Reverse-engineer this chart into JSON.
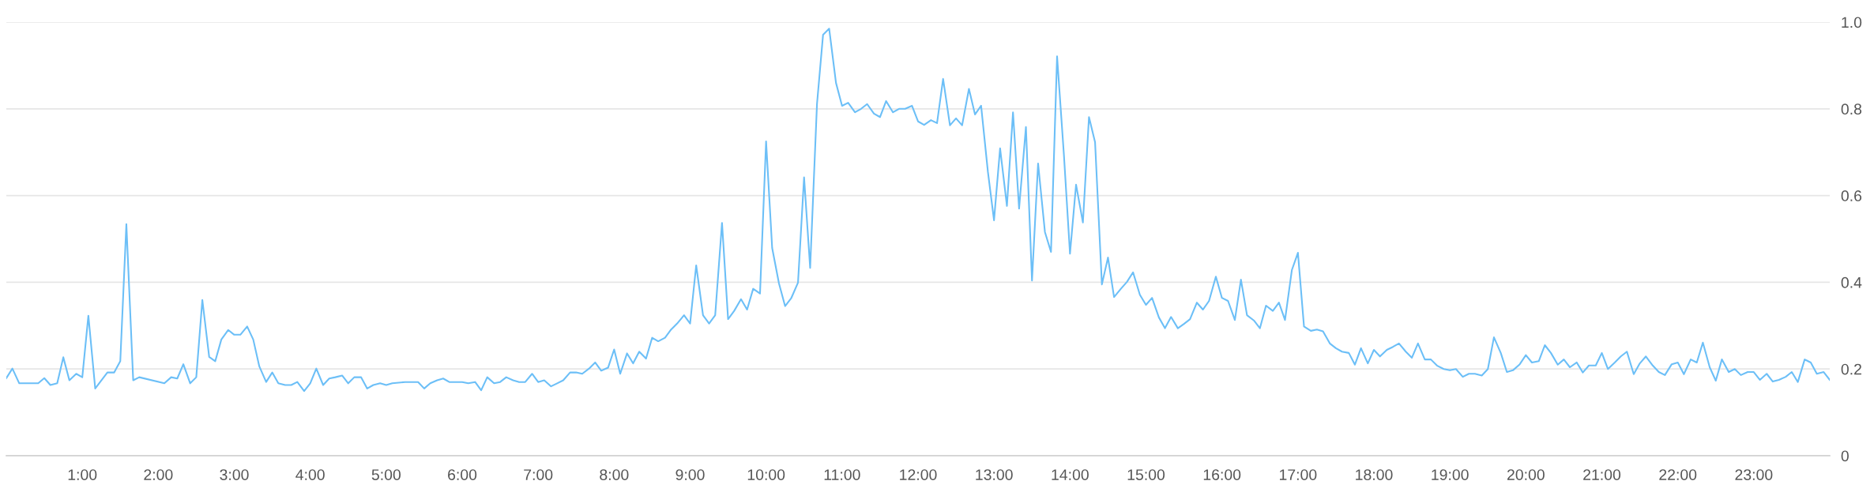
{
  "chart_data": {
    "type": "line",
    "x": [
      0,
      0.08,
      0.17,
      0.42,
      0.5,
      0.58,
      0.67,
      0.75,
      0.83,
      0.92,
      1,
      1.08,
      1.17,
      1.33,
      1.42,
      1.5,
      1.58,
      1.67,
      1.75,
      2.08,
      2.17,
      2.25,
      2.33,
      2.42,
      2.5,
      2.58,
      2.67,
      2.75,
      2.83,
      2.92,
      3,
      3.08,
      3.17,
      3.25,
      3.33,
      3.42,
      3.5,
      3.58,
      3.67,
      3.75,
      3.83,
      3.92,
      4,
      4.08,
      4.17,
      4.25,
      4.33,
      4.42,
      4.5,
      4.58,
      4.67,
      4.75,
      4.83,
      4.92,
      5,
      5.08,
      5.25,
      5.42,
      5.5,
      5.58,
      5.67,
      5.75,
      5.83,
      6,
      6.08,
      6.17,
      6.25,
      6.33,
      6.42,
      6.5,
      6.58,
      6.67,
      6.75,
      6.83,
      6.92,
      7,
      7.08,
      7.17,
      7.25,
      7.33,
      7.42,
      7.5,
      7.58,
      7.67,
      7.75,
      7.83,
      7.92,
      8,
      8.08,
      8.17,
      8.25,
      8.33,
      8.42,
      8.5,
      8.58,
      8.67,
      8.75,
      8.83,
      8.92,
      9,
      9.08,
      9.17,
      9.25,
      9.33,
      9.42,
      9.5,
      9.58,
      9.67,
      9.75,
      9.83,
      9.92,
      10,
      10.08,
      10.17,
      10.25,
      10.33,
      10.42,
      10.5,
      10.58,
      10.67,
      10.75,
      10.83,
      10.92,
      11,
      11.08,
      11.17,
      11.25,
      11.33,
      11.42,
      11.5,
      11.58,
      11.67,
      11.75,
      11.83,
      11.92,
      12,
      12.08,
      12.17,
      12.25,
      12.33,
      12.42,
      12.5,
      12.58,
      12.67,
      12.75,
      12.83,
      12.92,
      13,
      13.08,
      13.17,
      13.25,
      13.33,
      13.42,
      13.5,
      13.58,
      13.67,
      13.75,
      13.83,
      13.92,
      14,
      14.08,
      14.17,
      14.25,
      14.33,
      14.42,
      14.5,
      14.58,
      14.67,
      14.75,
      14.83,
      14.92,
      15,
      15.08,
      15.17,
      15.25,
      15.33,
      15.42,
      15.5,
      15.58,
      15.67,
      15.75,
      15.83,
      15.92,
      16,
      16.08,
      16.17,
      16.25,
      16.33,
      16.42,
      16.5,
      16.58,
      16.67,
      16.75,
      16.83,
      16.92,
      17,
      17.08,
      17.17,
      17.25,
      17.33,
      17.42,
      17.5,
      17.58,
      17.67,
      17.75,
      17.83,
      17.92,
      18,
      18.08,
      18.17,
      18.25,
      18.33,
      18.42,
      18.5,
      18.58,
      18.67,
      18.75,
      18.83,
      18.92,
      19,
      19.08,
      19.17,
      19.25,
      19.33,
      19.42,
      19.5,
      19.58,
      19.67,
      19.75,
      19.83,
      19.92,
      20,
      20.08,
      20.17,
      20.25,
      20.33,
      20.42,
      20.5,
      20.58,
      20.67,
      20.75,
      20.83,
      20.92,
      21,
      21.08,
      21.17,
      21.25,
      21.33,
      21.42,
      21.5,
      21.58,
      21.67,
      21.75,
      21.83,
      21.92,
      22,
      22.08,
      22.17,
      22.25,
      22.33,
      22.42,
      22.5,
      22.58,
      22.67,
      22.75,
      22.83,
      22.92,
      23,
      23.08,
      23.17,
      23.25,
      23.33,
      23.42,
      23.5,
      23.58,
      23.67,
      23.75,
      23.83,
      23.92,
      24
    ],
    "series": [
      {
        "color": "#6cbff7",
        "values": [
          0.179,
          0.201,
          0.167,
          0.167,
          0.179,
          0.163,
          0.167,
          0.227,
          0.174,
          0.189,
          0.181,
          0.323,
          0.155,
          0.192,
          0.192,
          0.218,
          0.534,
          0.174,
          0.181,
          0.167,
          0.181,
          0.178,
          0.211,
          0.167,
          0.181,
          0.359,
          0.228,
          0.218,
          0.268,
          0.29,
          0.279,
          0.279,
          0.298,
          0.268,
          0.206,
          0.17,
          0.192,
          0.167,
          0.163,
          0.163,
          0.17,
          0.149,
          0.167,
          0.201,
          0.163,
          0.178,
          0.181,
          0.185,
          0.167,
          0.181,
          0.181,
          0.155,
          0.163,
          0.167,
          0.163,
          0.167,
          0.17,
          0.17,
          0.155,
          0.167,
          0.174,
          0.178,
          0.17,
          0.17,
          0.167,
          0.17,
          0.151,
          0.181,
          0.167,
          0.17,
          0.181,
          0.174,
          0.17,
          0.17,
          0.189,
          0.17,
          0.174,
          0.16,
          0.167,
          0.174,
          0.192,
          0.192,
          0.189,
          0.201,
          0.215,
          0.196,
          0.203,
          0.245,
          0.189,
          0.236,
          0.213,
          0.24,
          0.224,
          0.272,
          0.264,
          0.272,
          0.291,
          0.305,
          0.324,
          0.305,
          0.439,
          0.324,
          0.305,
          0.324,
          0.537,
          0.315,
          0.334,
          0.361,
          0.337,
          0.385,
          0.374,
          0.725,
          0.479,
          0.397,
          0.345,
          0.363,
          0.399,
          0.642,
          0.433,
          0.811,
          0.971,
          0.985,
          0.86,
          0.807,
          0.814,
          0.792,
          0.8,
          0.811,
          0.789,
          0.781,
          0.818,
          0.792,
          0.8,
          0.8,
          0.807,
          0.771,
          0.763,
          0.774,
          0.767,
          0.869,
          0.762,
          0.778,
          0.762,
          0.846,
          0.787,
          0.807,
          0.654,
          0.543,
          0.709,
          0.576,
          0.792,
          0.57,
          0.758,
          0.404,
          0.674,
          0.516,
          0.47,
          0.921,
          0.694,
          0.466,
          0.625,
          0.538,
          0.781,
          0.723,
          0.395,
          0.457,
          0.366,
          0.385,
          0.401,
          0.423,
          0.371,
          0.348,
          0.364,
          0.319,
          0.294,
          0.32,
          0.294,
          0.304,
          0.315,
          0.353,
          0.337,
          0.357,
          0.413,
          0.364,
          0.357,
          0.313,
          0.406,
          0.324,
          0.312,
          0.294,
          0.346,
          0.334,
          0.353,
          0.313,
          0.428,
          0.468,
          0.298,
          0.288,
          0.291,
          0.287,
          0.259,
          0.248,
          0.24,
          0.237,
          0.21,
          0.248,
          0.213,
          0.244,
          0.229,
          0.244,
          0.251,
          0.259,
          0.24,
          0.226,
          0.259,
          0.222,
          0.222,
          0.208,
          0.2,
          0.197,
          0.2,
          0.182,
          0.189,
          0.189,
          0.185,
          0.2,
          0.273,
          0.237,
          0.193,
          0.197,
          0.211,
          0.232,
          0.215,
          0.218,
          0.255,
          0.237,
          0.21,
          0.222,
          0.204,
          0.215,
          0.192,
          0.208,
          0.208,
          0.237,
          0.2,
          0.215,
          0.229,
          0.24,
          0.188,
          0.213,
          0.229,
          0.208,
          0.193,
          0.186,
          0.211,
          0.215,
          0.188,
          0.222,
          0.215,
          0.261,
          0.204,
          0.173,
          0.222,
          0.193,
          0.2,
          0.186,
          0.193,
          0.193,
          0.175,
          0.189,
          0.171,
          0.175,
          0.182,
          0.193,
          0.17,
          0.222,
          0.215,
          0.189,
          0.193,
          0.175
        ]
      }
    ],
    "xlim": [
      0,
      24
    ],
    "xticks": [
      {
        "value": 1,
        "label": "1:00"
      },
      {
        "value": 2,
        "label": "2:00"
      },
      {
        "value": 3,
        "label": "3:00"
      },
      {
        "value": 4,
        "label": "4:00"
      },
      {
        "value": 5,
        "label": "5:00"
      },
      {
        "value": 6,
        "label": "6:00"
      },
      {
        "value": 7,
        "label": "7:00"
      },
      {
        "value": 8,
        "label": "8:00"
      },
      {
        "value": 9,
        "label": "9:00"
      },
      {
        "value": 10,
        "label": "10:00"
      },
      {
        "value": 11,
        "label": "11:00"
      },
      {
        "value": 12,
        "label": "12:00"
      },
      {
        "value": 13,
        "label": "13:00"
      },
      {
        "value": 14,
        "label": "14:00"
      },
      {
        "value": 15,
        "label": "15:00"
      },
      {
        "value": 16,
        "label": "16:00"
      },
      {
        "value": 17,
        "label": "17:00"
      },
      {
        "value": 18,
        "label": "18:00"
      },
      {
        "value": 19,
        "label": "19:00"
      },
      {
        "value": 20,
        "label": "20:00"
      },
      {
        "value": 21,
        "label": "21:00"
      },
      {
        "value": 22,
        "label": "22:00"
      },
      {
        "value": 23,
        "label": "23:00"
      }
    ],
    "ylim": [
      0,
      1
    ],
    "yticks": [
      0,
      0.2,
      0.4,
      0.6,
      0.8,
      {
        "value": 1,
        "label": "1.0"
      }
    ],
    "grid": "y"
  }
}
